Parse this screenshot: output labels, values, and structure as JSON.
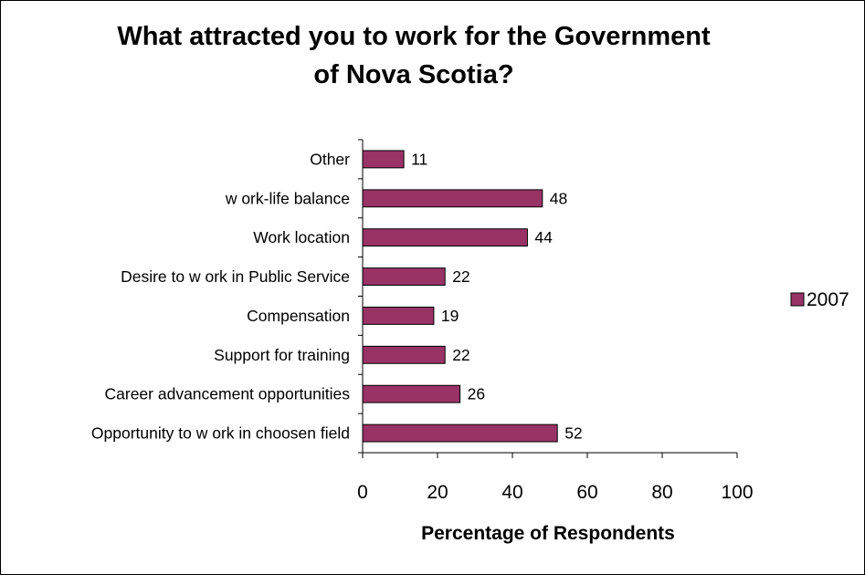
{
  "chart_data": {
    "type": "bar",
    "orientation": "horizontal",
    "title_lines": [
      "What attracted you to work for the Government",
      "of Nova Scotia?"
    ],
    "xlabel": "Percentage of Respondents",
    "ylabel": "",
    "xlim": [
      0,
      100
    ],
    "xticks": [
      0,
      20,
      40,
      60,
      80,
      100
    ],
    "categories": [
      "Other",
      "w ork-life balance",
      "Work location",
      "Desire to w ork in Public Service",
      "Compensation",
      "Support for training",
      "Career advancement opportunities",
      "Opportunity to w ork in choosen field"
    ],
    "series": [
      {
        "name": "2007",
        "values": [
          11,
          48,
          44,
          22,
          19,
          22,
          26,
          52
        ],
        "color": "#993366"
      }
    ],
    "grid": false,
    "legend_position": "right",
    "data_labels": true
  }
}
